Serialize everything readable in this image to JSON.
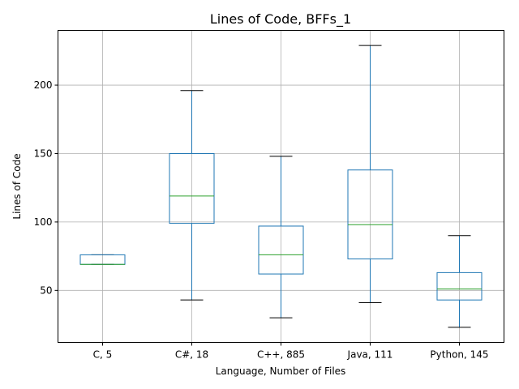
{
  "chart_data": {
    "type": "box",
    "title": "Lines of Code, BFFs_1",
    "xlabel": "Language, Number of Files",
    "ylabel": "Lines of Code",
    "ylim": [
      12,
      240
    ],
    "yticks": [
      50,
      100,
      150,
      200
    ],
    "grid": true,
    "colors": {
      "box": "#1f77b4",
      "median": "#2ca02c",
      "whisker_cap": "#000000",
      "grid": "#b0b0b0"
    },
    "categories": [
      "C, 5",
      "C#, 18",
      "C++, 885",
      "Java, 111",
      "Python, 145"
    ],
    "boxes": [
      {
        "category": "C, 5",
        "whislo": 69,
        "q1": 69,
        "median": 69,
        "q3": 76,
        "whishi": 76
      },
      {
        "category": "C#, 18",
        "whislo": 43,
        "q1": 99,
        "median": 119,
        "q3": 150,
        "whishi": 196
      },
      {
        "category": "C++, 885",
        "whislo": 30,
        "q1": 62,
        "median": 76,
        "q3": 97,
        "whishi": 148
      },
      {
        "category": "Java, 111",
        "whislo": 41,
        "q1": 73,
        "median": 98,
        "q3": 138,
        "whishi": 229
      },
      {
        "category": "Python, 145",
        "whislo": 23,
        "q1": 43,
        "median": 51,
        "q3": 63,
        "whishi": 90
      }
    ]
  }
}
